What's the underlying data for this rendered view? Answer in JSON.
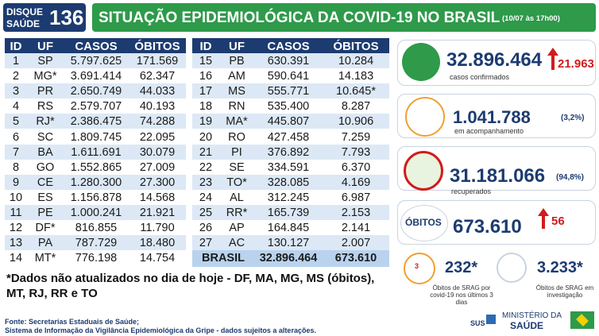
{
  "header": {
    "logo_top": "DISQUE",
    "logo_bottom": "SAÚDE",
    "logo_number": "136",
    "title": "SITUAÇÃO EPIDEMIOLÓGICA DA COVID-19 NO BRASIL",
    "date": "(10/07 às 17h00)"
  },
  "tables": [
    {
      "columns": [
        "ID",
        "UF",
        "CASOS",
        "ÓBITOS"
      ],
      "rows": [
        [
          "1",
          "SP",
          "5.797.625",
          "171.569"
        ],
        [
          "2",
          "MG*",
          "3.691.414",
          "62.347"
        ],
        [
          "3",
          "PR",
          "2.650.749",
          "44.033"
        ],
        [
          "4",
          "RS",
          "2.579.707",
          "40.193"
        ],
        [
          "5",
          "RJ*",
          "2.386.475",
          "74.288"
        ],
        [
          "6",
          "SC",
          "1.809.745",
          "22.095"
        ],
        [
          "7",
          "BA",
          "1.611.691",
          "30.079"
        ],
        [
          "8",
          "GO",
          "1.552.865",
          "27.009"
        ],
        [
          "9",
          "CE",
          "1.280.300",
          "27.300"
        ],
        [
          "10",
          "ES",
          "1.156.878",
          "14.568"
        ],
        [
          "11",
          "PE",
          "1.000.241",
          "21.921"
        ],
        [
          "12",
          "DF*",
          "816.855",
          "11.790"
        ],
        [
          "13",
          "PA",
          "787.729",
          "18.480"
        ],
        [
          "14",
          "MT*",
          "776.198",
          "14.754"
        ]
      ]
    },
    {
      "columns": [
        "ID",
        "UF",
        "CASOS",
        "ÓBITOS"
      ],
      "rows": [
        [
          "15",
          "PB",
          "630.391",
          "10.284"
        ],
        [
          "16",
          "AM",
          "590.641",
          "14.183"
        ],
        [
          "17",
          "MS",
          "555.771",
          "10.645*"
        ],
        [
          "18",
          "RN",
          "535.400",
          "8.287"
        ],
        [
          "19",
          "MA*",
          "445.807",
          "10.906"
        ],
        [
          "20",
          "RO",
          "427.458",
          "7.259"
        ],
        [
          "21",
          "PI",
          "376.892",
          "7.793"
        ],
        [
          "22",
          "SE",
          "334.591",
          "6.370"
        ],
        [
          "23",
          "TO*",
          "328.085",
          "4.169"
        ],
        [
          "24",
          "AL",
          "312.245",
          "6.987"
        ],
        [
          "25",
          "RR*",
          "165.739",
          "2.153"
        ],
        [
          "26",
          "AP",
          "164.845",
          "2.141"
        ],
        [
          "27",
          "AC",
          "130.127",
          "2.007"
        ]
      ]
    }
  ],
  "total": {
    "label": "BRASIL",
    "cases": "32.896.464",
    "deaths": "673.610"
  },
  "summary": {
    "confirmed": {
      "value": "32.896.464",
      "change": "21.963",
      "label": "casos confirmados"
    },
    "monitoring": {
      "value": "1.041.788",
      "percent": "(3,2%)",
      "label": "em acompanhamento"
    },
    "recovered": {
      "value": "31.181.066",
      "percent": "(94,8%)",
      "label": "recuperados"
    },
    "deaths": {
      "badge": "ÓBITOS",
      "value": "673.610",
      "change": "56"
    },
    "srag_recent": {
      "icon": "3",
      "value": "232*",
      "label": "Óbitos de SRAG por covid-19 nos últimos 3 dias"
    },
    "srag_investigation": {
      "value": "3.233*",
      "label": "Óbitos de SRAG em investigação"
    }
  },
  "note": "*Dados não atualizados no dia de hoje - DF, MA, MG, MS (óbitos), MT, RJ, RR e TO",
  "sources": [
    "Fonte: Secretarias Estaduais de Saúde;",
    "Sistema de Informação da Vigilância Epidemiológica da Gripe - dados sujeitos a alterações."
  ],
  "footer": {
    "sus": "SUS",
    "ministry_top": "MINISTÉRIO DA",
    "ministry_bottom": "SAÚDE"
  }
}
